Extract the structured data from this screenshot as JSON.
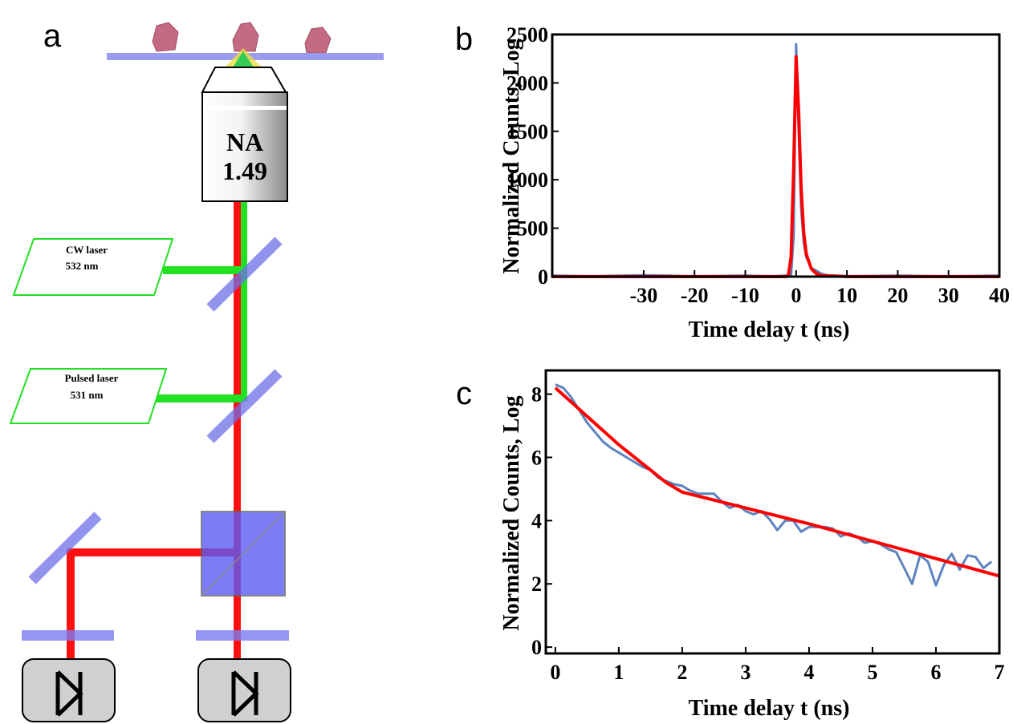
{
  "diagram": {
    "panel_label": "a",
    "objective_na": "NA",
    "objective_value": "1.49",
    "cw_laser": "CW laser",
    "cw_wavelength": "532 nm",
    "pulsed_laser": "Pulsed laser",
    "pulsed_wavelength": "531 nm"
  },
  "chart_data": [
    {
      "type": "line",
      "panel_label": "b",
      "xlabel": "Time delay t (ns)",
      "ylabel": "Normalized Counts, Log",
      "xlim": [
        -48,
        40
      ],
      "xticks": [
        -30,
        -20,
        -10,
        0,
        10,
        20,
        30,
        40
      ],
      "ylim": [
        0,
        2500
      ],
      "yticks": [
        0,
        500,
        1000,
        1500,
        2000,
        2500
      ],
      "series": [
        {
          "color": "#5b83c0",
          "x": [
            -48,
            -40,
            -30,
            -20,
            -10,
            -5,
            -2,
            -1,
            -0.5,
            0,
            0.5,
            1,
            1.5,
            2,
            2.5,
            3,
            4,
            5,
            6,
            8,
            10,
            20,
            30,
            40
          ],
          "values": [
            10,
            5,
            15,
            5,
            10,
            5,
            10,
            20,
            400,
            2400,
            1500,
            700,
            350,
            200,
            150,
            90,
            60,
            30,
            15,
            10,
            5,
            10,
            5,
            10
          ]
        },
        {
          "color": "#ff0000",
          "x": [
            -48,
            -10,
            -2,
            -1.5,
            -1,
            -0.5,
            0,
            0.5,
            1,
            1.5,
            2,
            3,
            4,
            5,
            10,
            20,
            40
          ],
          "values": [
            0,
            0,
            0,
            20,
            200,
            1100,
            2270,
            1700,
            900,
            450,
            230,
            80,
            30,
            10,
            0,
            0,
            0
          ]
        }
      ]
    },
    {
      "type": "line",
      "panel_label": "c",
      "xlabel": "Time delay t (ns)",
      "ylabel": "Normalized Counts, Log",
      "xlim": [
        -0.15,
        7
      ],
      "xticks": [
        0,
        1,
        2,
        3,
        4,
        5,
        6,
        7
      ],
      "ylim": [
        -0.2,
        8.75
      ],
      "yticks": [
        0,
        2,
        4,
        6,
        8
      ],
      "series": [
        {
          "color": "#5b83c0",
          "x": [
            0,
            0.125,
            0.25,
            0.375,
            0.5,
            0.625,
            0.75,
            0.875,
            1,
            1.125,
            1.25,
            1.375,
            1.5,
            1.625,
            1.75,
            1.875,
            2,
            2.125,
            2.25,
            2.375,
            2.5,
            2.625,
            2.75,
            2.875,
            3,
            3.125,
            3.25,
            3.375,
            3.5,
            3.625,
            3.75,
            3.875,
            4,
            4.125,
            4.25,
            4.375,
            4.5,
            4.625,
            4.75,
            4.875,
            5,
            5.125,
            5.25,
            5.375,
            5.5,
            5.625,
            5.75,
            5.875,
            6,
            6.125,
            6.25,
            6.375,
            6.5,
            6.625,
            6.75,
            6.875
          ],
          "values": [
            8.3,
            8.2,
            7.9,
            7.5,
            7.1,
            6.8,
            6.5,
            6.3,
            6.15,
            6.0,
            5.85,
            5.7,
            5.6,
            5.35,
            5.25,
            5.15,
            5.1,
            4.95,
            4.85,
            4.85,
            4.85,
            4.6,
            4.4,
            4.5,
            4.3,
            4.2,
            4.3,
            4.05,
            3.7,
            4.0,
            4.0,
            3.65,
            3.8,
            3.8,
            3.8,
            3.75,
            3.5,
            3.6,
            3.5,
            3.3,
            3.35,
            3.25,
            3.1,
            3.0,
            2.5,
            2.0,
            2.9,
            2.7,
            1.95,
            2.6,
            2.95,
            2.45,
            2.9,
            2.85,
            2.5,
            2.7
          ]
        },
        {
          "color": "#ff0000",
          "x": [
            0,
            0.5,
            1,
            1.5,
            1.75,
            2,
            2.5,
            3,
            4,
            5,
            6,
            7
          ],
          "values": [
            8.2,
            7.3,
            6.4,
            5.6,
            5.2,
            4.9,
            4.65,
            4.4,
            3.9,
            3.35,
            2.8,
            2.25
          ]
        }
      ]
    }
  ]
}
